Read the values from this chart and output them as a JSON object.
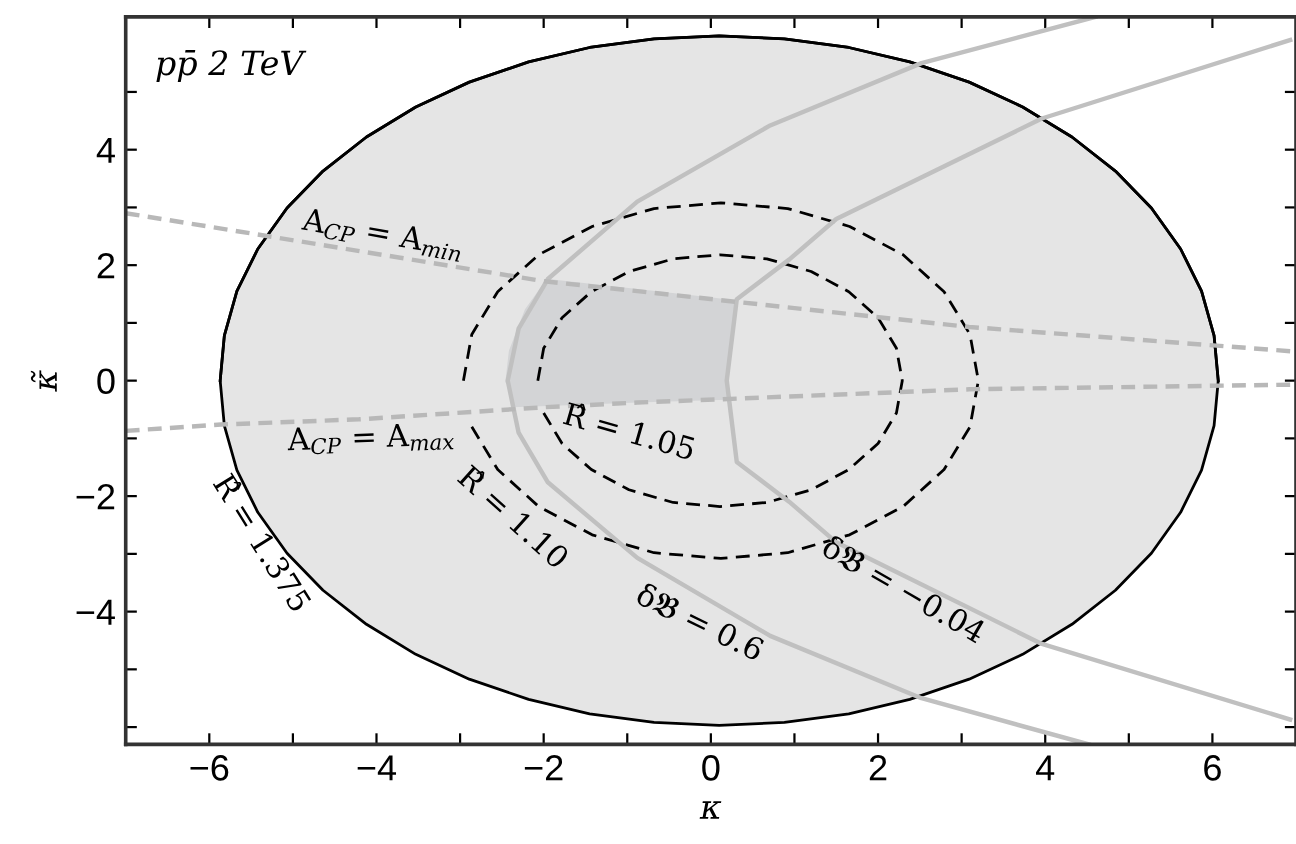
{
  "chart_data": {
    "type": "line",
    "xlabel": "κ",
    "ylabel": "κ̃",
    "xlim": [
      -7,
      7
    ],
    "ylim": [
      -6.3,
      6.3
    ],
    "xticks": [
      -6,
      {
        "value": -5,
        "label": null
      },
      -4,
      {
        "value": -3,
        "label": null
      },
      -2,
      {
        "value": -1,
        "label": null
      },
      0,
      {
        "value": 1,
        "label": null
      },
      2,
      {
        "value": 3,
        "label": null
      },
      4,
      {
        "value": 5,
        "label": null
      },
      6
    ],
    "yticks": [
      {
        "value": -6,
        "label": null
      },
      {
        "value": -5,
        "label": null
      },
      -4,
      {
        "value": -3,
        "label": null
      },
      -2,
      {
        "value": -1,
        "label": null
      },
      0,
      {
        "value": 1,
        "label": null
      },
      2,
      {
        "value": 3,
        "label": null
      },
      4,
      {
        "value": 5,
        "label": null
      }
    ],
    "grid": false,
    "legend": false,
    "series": [
      {
        "color": "#000000",
        "line_style": "solid",
        "x": [
          -5.87,
          -5.82,
          -5.67,
          -5.42,
          -5.07,
          -4.64,
          -4.12,
          -3.53,
          -2.89,
          -2.18,
          -1.45,
          -0.68,
          0.1,
          0.88,
          1.65,
          2.38,
          3.09,
          3.73,
          4.32,
          4.84,
          5.27,
          5.62,
          5.87,
          6.02,
          6.07
        ],
        "values": [
          0,
          0.78,
          1.55,
          2.28,
          2.99,
          3.63,
          4.22,
          4.74,
          5.17,
          5.52,
          5.77,
          5.92,
          5.97,
          5.92,
          5.77,
          5.52,
          5.17,
          4.74,
          4.22,
          3.63,
          2.99,
          2.28,
          1.55,
          0.78,
          0
        ],
        "upper": [
          0,
          0.78,
          1.55,
          2.28,
          2.99,
          3.63,
          4.22,
          4.74,
          5.17,
          5.52,
          5.77,
          5.92,
          5.97,
          5.92,
          5.77,
          5.52,
          5.17,
          4.74,
          4.22,
          3.63,
          2.99,
          2.28,
          1.55,
          0.78,
          0
        ],
        "lower": [
          0,
          -0.78,
          -1.55,
          -2.28,
          -2.99,
          -3.63,
          -4.22,
          -4.74,
          -5.17,
          -5.52,
          -5.77,
          -5.92,
          -5.97,
          -5.92,
          -5.77,
          -5.52,
          -5.17,
          -4.74,
          -4.22,
          -3.63,
          -2.99,
          -2.28,
          -1.55,
          -0.78,
          0
        ]
      },
      {
        "color": "#d3d4d6",
        "line_style": "solid",
        "x": [
          -2.43,
          -2.39,
          -2.2,
          -1.95,
          -0.88,
          0.19,
          0.29
        ],
        "values": [
          0,
          0.51,
          1.22,
          1.72,
          1.55,
          1.37,
          1.35
        ],
        "upper": [
          0,
          0.51,
          1.22,
          1.72,
          1.55,
          1.37,
          1.35
        ],
        "lower": [
          0,
          -0.46,
          -0.45,
          -0.44,
          -0.38,
          -0.33,
          1.29
        ]
      },
      {
        "color": "#000000",
        "line_style": "dashed",
        "x": [
          -2.96,
          -2.86,
          -2.55,
          -2.06,
          -1.42,
          -0.68,
          0.12,
          0.92,
          1.66,
          2.3,
          2.79,
          3.1,
          3.2,
          3.1,
          2.79,
          2.3,
          1.66,
          0.92,
          0.12,
          -0.68,
          -1.42,
          -2.06,
          -2.55,
          -2.86
        ],
        "values": [
          0,
          0.8,
          1.54,
          2.18,
          2.67,
          2.98,
          3.08,
          2.98,
          2.67,
          2.18,
          1.54,
          0.8,
          0,
          -0.8,
          -1.54,
          -2.18,
          -2.67,
          -2.98,
          -3.08,
          -2.98,
          -2.67,
          -2.18,
          -1.54,
          -0.8
        ]
      },
      {
        "color": "#000000",
        "line_style": "dashed",
        "x": [
          -2.07,
          -2.0,
          -1.78,
          -1.43,
          -0.98,
          -0.45,
          0.11,
          0.67,
          1.2,
          1.65,
          2.0,
          2.22,
          2.29,
          2.22,
          2.0,
          1.65,
          1.2,
          0.67,
          0.11,
          -0.45,
          -0.98,
          -1.43,
          -1.78,
          -2.0
        ],
        "values": [
          0,
          0.56,
          1.09,
          1.54,
          1.89,
          2.11,
          2.18,
          2.11,
          1.89,
          1.54,
          1.09,
          0.56,
          0,
          -0.56,
          -1.09,
          -1.54,
          -1.89,
          -2.11,
          -2.18,
          -2.11,
          -1.89,
          -1.54,
          -1.09,
          -0.56
        ]
      },
      {
        "color": "#c0c0c0",
        "line_style": "solid",
        "x": [
          4.52,
          2.52,
          0.71,
          -0.88,
          -1.95,
          -2.3,
          -2.43,
          -2.3,
          -1.95,
          -0.88,
          0.71,
          2.52,
          4.6
        ],
        "values": [
          -6.3,
          -5.5,
          -4.42,
          -3.07,
          -1.76,
          -0.9,
          0,
          0.9,
          1.76,
          3.1,
          4.42,
          5.5,
          6.3
        ]
      },
      {
        "color": "#c0c0c0",
        "line_style": "solid",
        "x": [
          6.93,
          3.96,
          1.5,
          0.94,
          0.31,
          0.19,
          0.31,
          0.94,
          1.5,
          3.96,
          6.93
        ],
        "values": [
          -5.87,
          -4.56,
          -2.8,
          -2.1,
          -1.41,
          0,
          1.41,
          2.1,
          2.8,
          4.54,
          5.9
        ]
      },
      {
        "color": "#b8b8b8",
        "line_style": "dashed",
        "x": [
          -7,
          -5.33,
          -1.99,
          -0.88,
          3.09,
          6.93
        ],
        "values": [
          2.9,
          2.51,
          1.72,
          1.55,
          0.93,
          0.51
        ]
      },
      {
        "color": "#b8b8b8",
        "line_style": "dashed",
        "x": [
          -7,
          -5.86,
          -4.21,
          -1.99,
          -0.88,
          3.09,
          6.93
        ],
        "values": [
          -0.87,
          -0.76,
          -0.67,
          -0.46,
          -0.38,
          -0.15,
          -0.07
        ]
      }
    ],
    "annotations": [
      "pp̄ 2 TeV",
      "A$_{CP}$ = A$_{min}$",
      "A$_{CP}$ = A$_{max}$",
      "R̂ = 1.375",
      "R̂ = 1.10",
      "R̂ = 1.05",
      "δ𝔅 = 0.6",
      "δ𝔅 = −0.04"
    ]
  }
}
